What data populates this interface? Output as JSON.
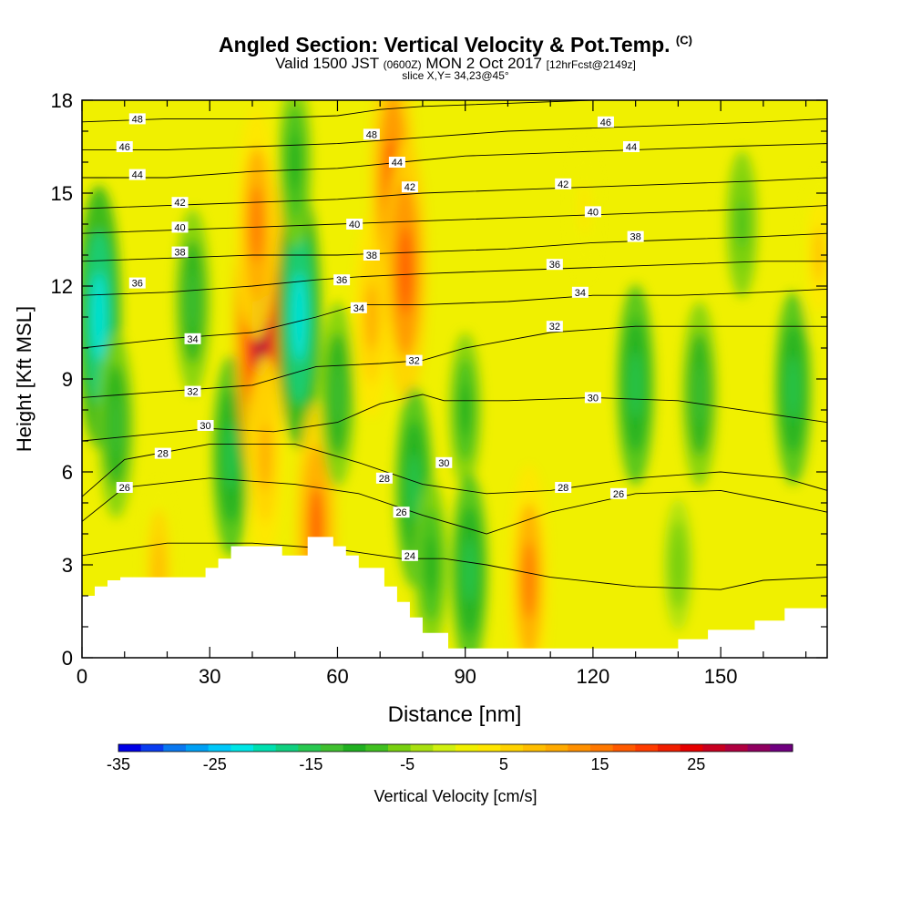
{
  "title": {
    "main": "Angled Section: Vertical Velocity & Pot.Temp.",
    "units": "(C)",
    "valid_prefix": "Valid 1500 JST",
    "valid_utc": "(0600Z)",
    "valid_date": "MON 2 Oct 2017",
    "forecast": "[12hrFcst@2149z]",
    "slice": "slice X,Y= 34,23@45°"
  },
  "chart_data": {
    "type": "heatmap",
    "xlabel": "Distance [nm]",
    "ylabel": "Height [Kft MSL]",
    "xlim": [
      0,
      175
    ],
    "ylim": [
      0,
      18
    ],
    "x_ticks": [
      0,
      30,
      60,
      90,
      120,
      150
    ],
    "y_ticks": [
      0,
      3,
      6,
      9,
      12,
      15,
      18
    ],
    "colorbar": {
      "label": "Vertical Velocity [cm/s]",
      "min": -35,
      "max": 35,
      "step": 2.5,
      "tick_labels": [
        -35,
        -25,
        -15,
        -5,
        5,
        15,
        25
      ],
      "colors": [
        "#0000e6",
        "#0a3cf0",
        "#0a78f0",
        "#00a0f5",
        "#00c8fa",
        "#00e6e6",
        "#00e0b0",
        "#10d080",
        "#28c850",
        "#40c030",
        "#20b020",
        "#40c020",
        "#78d010",
        "#a8e010",
        "#d0f010",
        "#f0f000",
        "#ffe600",
        "#ffd200",
        "#ffbe00",
        "#ffaa00",
        "#ff9000",
        "#ff7800",
        "#ff5a00",
        "#ff3c00",
        "#f01e00",
        "#e60000",
        "#c80020",
        "#b00040",
        "#900060",
        "#700080"
      ]
    },
    "terrain_profile": {
      "x": [
        0,
        3,
        3,
        6,
        6,
        9,
        9,
        29,
        29,
        32,
        32,
        35,
        35,
        47,
        47,
        50,
        50,
        53,
        53,
        59,
        59,
        62,
        62,
        65,
        65,
        71,
        71,
        74,
        74,
        77,
        77,
        80,
        80,
        86,
        86,
        89,
        89,
        140,
        140,
        147,
        147,
        158,
        158,
        165,
        165,
        175,
        175
      ],
      "height_kft": [
        2.0,
        2.0,
        2.3,
        2.3,
        2.5,
        2.5,
        2.6,
        2.6,
        2.9,
        2.9,
        3.2,
        3.2,
        3.6,
        3.6,
        3.3,
        3.3,
        3.3,
        3.3,
        3.9,
        3.9,
        3.6,
        3.6,
        3.3,
        3.3,
        2.9,
        2.9,
        2.3,
        2.3,
        1.8,
        1.8,
        1.3,
        1.3,
        0.8,
        0.8,
        0.3,
        0.3,
        0.3,
        0.3,
        0.6,
        0.6,
        0.9,
        0.9,
        1.2,
        1.2,
        1.6,
        1.6,
        0
      ]
    },
    "vertical_velocity_features": [
      {
        "x": 4,
        "height_kft": 11.0,
        "value": -22
      },
      {
        "x": 8,
        "height_kft": 7.5,
        "value": -12
      },
      {
        "x": 18,
        "height_kft": 2.8,
        "value": 12
      },
      {
        "x": 26,
        "height_kft": 11.5,
        "value": -12
      },
      {
        "x": 35,
        "height_kft": 6.5,
        "value": -14
      },
      {
        "x": 42,
        "height_kft": 10.8,
        "value": 33
      },
      {
        "x": 41,
        "height_kft": 14.0,
        "value": 18
      },
      {
        "x": 43,
        "height_kft": 6.5,
        "value": 14
      },
      {
        "x": 51,
        "height_kft": 11.0,
        "value": -22
      },
      {
        "x": 50,
        "height_kft": 16.0,
        "value": -10
      },
      {
        "x": 55,
        "height_kft": 4.2,
        "value": 20
      },
      {
        "x": 60,
        "height_kft": 8.5,
        "value": -12
      },
      {
        "x": 68,
        "height_kft": 11.0,
        "value": 14
      },
      {
        "x": 73,
        "height_kft": 15.2,
        "value": 24
      },
      {
        "x": 76,
        "height_kft": 12.5,
        "value": 22
      },
      {
        "x": 78,
        "height_kft": 5.5,
        "value": -14
      },
      {
        "x": 82,
        "height_kft": 3.0,
        "value": -10
      },
      {
        "x": 90,
        "height_kft": 8.0,
        "value": -8
      },
      {
        "x": 91,
        "height_kft": 2.8,
        "value": -13
      },
      {
        "x": 105,
        "height_kft": 2.5,
        "value": 18
      },
      {
        "x": 118,
        "height_kft": 14.5,
        "value": 7
      },
      {
        "x": 130,
        "height_kft": 8.8,
        "value": -14
      },
      {
        "x": 145,
        "height_kft": 8.5,
        "value": -12
      },
      {
        "x": 167,
        "height_kft": 8.7,
        "value": -13
      },
      {
        "x": 173,
        "height_kft": 13.0,
        "value": 10
      },
      {
        "x": 155,
        "height_kft": 14.0,
        "value": -7
      },
      {
        "x": 140,
        "height_kft": 3.0,
        "value": -5
      }
    ],
    "isentropes": [
      {
        "value": 24,
        "x": [
          0,
          20,
          40,
          60,
          75,
          85,
          95,
          110,
          130,
          150,
          160,
          175
        ],
        "height_kft": [
          3.3,
          3.7,
          3.7,
          3.5,
          3.2,
          3.2,
          3.0,
          2.6,
          2.3,
          2.2,
          2.5,
          2.6
        ],
        "labels": [
          {
            "x": 77,
            "height_kft": 3.3
          }
        ]
      },
      {
        "value": 26,
        "x": [
          0,
          10,
          30,
          50,
          65,
          80,
          95,
          110,
          130,
          150,
          165,
          175
        ],
        "height_kft": [
          4.4,
          5.5,
          5.8,
          5.6,
          5.3,
          4.6,
          4.0,
          4.7,
          5.3,
          5.4,
          5.0,
          4.7
        ],
        "labels": [
          {
            "x": 10,
            "height_kft": 5.5
          },
          {
            "x": 75,
            "height_kft": 4.7
          },
          {
            "x": 126,
            "height_kft": 5.3
          }
        ]
      },
      {
        "value": 28,
        "x": [
          0,
          10,
          30,
          50,
          65,
          80,
          95,
          110,
          130,
          150,
          165,
          175
        ],
        "height_kft": [
          5.2,
          6.4,
          6.9,
          6.9,
          6.3,
          5.6,
          5.3,
          5.4,
          5.8,
          6.0,
          5.8,
          5.4
        ],
        "labels": [
          {
            "x": 19,
            "height_kft": 6.6
          },
          {
            "x": 71,
            "height_kft": 5.8
          },
          {
            "x": 113,
            "height_kft": 5.5
          }
        ]
      },
      {
        "value": 30,
        "x": [
          0,
          15,
          30,
          45,
          60,
          70,
          80,
          85,
          100,
          120,
          140,
          160,
          175
        ],
        "height_kft": [
          7.0,
          7.2,
          7.4,
          7.3,
          7.6,
          8.2,
          8.5,
          8.3,
          8.3,
          8.4,
          8.3,
          7.9,
          7.6
        ],
        "labels": [
          {
            "x": 29,
            "height_kft": 7.5
          },
          {
            "x": 85,
            "height_kft": 6.3
          },
          {
            "x": 120,
            "height_kft": 8.4
          }
        ]
      },
      {
        "value": 32,
        "x": [
          0,
          20,
          40,
          55,
          70,
          80,
          90,
          110,
          130,
          150,
          175
        ],
        "height_kft": [
          8.4,
          8.6,
          8.8,
          9.4,
          9.5,
          9.6,
          10.0,
          10.5,
          10.7,
          10.7,
          10.7
        ],
        "labels": [
          {
            "x": 26,
            "height_kft": 8.6
          },
          {
            "x": 78,
            "height_kft": 9.6
          },
          {
            "x": 111,
            "height_kft": 10.7
          }
        ]
      },
      {
        "value": 34,
        "x": [
          0,
          20,
          40,
          55,
          65,
          80,
          100,
          120,
          140,
          160,
          175
        ],
        "height_kft": [
          10.0,
          10.3,
          10.5,
          11.0,
          11.4,
          11.4,
          11.5,
          11.7,
          11.7,
          11.8,
          11.9
        ],
        "labels": [
          {
            "x": 26,
            "height_kft": 10.3
          },
          {
            "x": 65,
            "height_kft": 11.3
          },
          {
            "x": 117,
            "height_kft": 11.8
          }
        ]
      },
      {
        "value": 36,
        "x": [
          0,
          20,
          40,
          55,
          65,
          80,
          100,
          120,
          140,
          160,
          175
        ],
        "height_kft": [
          11.7,
          11.8,
          12.0,
          12.2,
          12.3,
          12.4,
          12.5,
          12.6,
          12.7,
          12.8,
          12.8
        ],
        "labels": [
          {
            "x": 13,
            "height_kft": 12.1
          },
          {
            "x": 61,
            "height_kft": 12.2
          },
          {
            "x": 111,
            "height_kft": 12.7
          }
        ]
      },
      {
        "value": 38,
        "x": [
          0,
          20,
          40,
          60,
          80,
          100,
          120,
          140,
          160,
          175
        ],
        "height_kft": [
          12.8,
          12.9,
          13.0,
          13.0,
          13.1,
          13.2,
          13.4,
          13.5,
          13.6,
          13.7
        ],
        "labels": [
          {
            "x": 23,
            "height_kft": 13.1
          },
          {
            "x": 68,
            "height_kft": 13.0
          },
          {
            "x": 130,
            "height_kft": 13.6
          }
        ]
      },
      {
        "value": 40,
        "x": [
          0,
          20,
          40,
          60,
          80,
          100,
          120,
          140,
          160,
          175
        ],
        "height_kft": [
          13.7,
          13.8,
          13.9,
          14.0,
          14.1,
          14.2,
          14.3,
          14.4,
          14.5,
          14.6
        ],
        "labels": [
          {
            "x": 23,
            "height_kft": 13.9
          },
          {
            "x": 64,
            "height_kft": 14.0
          },
          {
            "x": 120,
            "height_kft": 14.4
          }
        ]
      },
      {
        "value": 42,
        "x": [
          0,
          20,
          40,
          60,
          80,
          100,
          120,
          140,
          160,
          175
        ],
        "height_kft": [
          14.5,
          14.6,
          14.7,
          14.8,
          15.0,
          15.1,
          15.2,
          15.3,
          15.4,
          15.5
        ],
        "labels": [
          {
            "x": 23,
            "height_kft": 14.7
          },
          {
            "x": 77,
            "height_kft": 15.2
          },
          {
            "x": 113,
            "height_kft": 15.3
          }
        ]
      },
      {
        "value": 44,
        "x": [
          0,
          20,
          40,
          60,
          75,
          90,
          110,
          130,
          150,
          175
        ],
        "height_kft": [
          15.5,
          15.5,
          15.7,
          15.8,
          16.0,
          16.2,
          16.3,
          16.4,
          16.5,
          16.6
        ],
        "labels": [
          {
            "x": 13,
            "height_kft": 15.6
          },
          {
            "x": 74,
            "height_kft": 16.0
          },
          {
            "x": 129,
            "height_kft": 16.5
          }
        ]
      },
      {
        "value": 46,
        "x": [
          0,
          20,
          40,
          60,
          80,
          100,
          120,
          140,
          160,
          175
        ],
        "height_kft": [
          16.4,
          16.4,
          16.5,
          16.6,
          16.8,
          17.0,
          17.1,
          17.2,
          17.3,
          17.4
        ],
        "labels": [
          {
            "x": 10,
            "height_kft": 16.5
          },
          {
            "x": 123,
            "height_kft": 17.3
          }
        ]
      },
      {
        "value": 48,
        "x": [
          0,
          20,
          40,
          60,
          70,
          80,
          100,
          120,
          140,
          160,
          175
        ],
        "height_kft": [
          17.3,
          17.4,
          17.4,
          17.5,
          17.7,
          17.8,
          17.9,
          18.0,
          18.0,
          18.0,
          18.0
        ],
        "labels": [
          {
            "x": 13,
            "height_kft": 17.4
          },
          {
            "x": 68,
            "height_kft": 16.9
          }
        ]
      }
    ]
  }
}
